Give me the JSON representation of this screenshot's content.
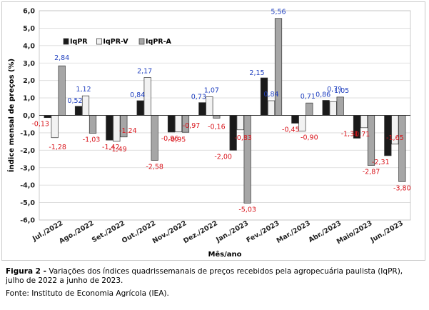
{
  "chart_data": {
    "type": "bar",
    "ylabel": "Índice mensal de preços (%)",
    "xlabel": "Mês/ano",
    "ylim": [
      -6,
      6
    ],
    "yticks": [
      "6,0",
      "5,0",
      "4,0",
      "3,0",
      "2,0",
      "1,0",
      "0,0",
      "-1,0",
      "-2,0",
      "-3,0",
      "-4,0",
      "-5,0",
      "-6,0"
    ],
    "grid": true,
    "legend_position": "top-left",
    "categories": [
      "Jul./2022",
      "Ago./2022",
      "Set./2022",
      "Out./2022",
      "Nov./2022",
      "Dez./2022",
      "Jan./2023",
      "Fev./2023",
      "Mar./2023",
      "Abr./2023",
      "Maio/2023",
      "Jun./2023"
    ],
    "series": [
      {
        "name": "IqPR",
        "color": "#1a1a1a",
        "values": [
          -0.13,
          0.52,
          -1.42,
          0.84,
          -0.96,
          0.73,
          -2.0,
          2.15,
          -0.45,
          0.86,
          -1.31,
          -2.31
        ],
        "labels": [
          "-0,13",
          "0,52",
          "-1,42",
          "0,84",
          "-0,96",
          "0,73",
          "-2,00",
          "2,15",
          "-0,45",
          "0,86",
          "-1,31",
          "-2,31"
        ]
      },
      {
        "name": "IqPR-V",
        "color": "#f2f2f2",
        "values": [
          -1.28,
          1.12,
          -1.49,
          2.17,
          -0.95,
          1.07,
          -0.83,
          0.84,
          -0.9,
          0.79,
          -0.71,
          -1.65
        ],
        "labels": [
          "-1,28",
          "1,12",
          "-1,49",
          "2,17",
          "-0,95",
          "1,07",
          "-0,83",
          "0,84",
          "-0,90",
          "0,79",
          "-0,71",
          "-1,65"
        ]
      },
      {
        "name": "IqPR-A",
        "color": "#a6a6a6",
        "values": [
          2.84,
          -1.03,
          -1.24,
          -2.58,
          -0.97,
          -0.16,
          -5.03,
          5.56,
          0.71,
          1.05,
          -2.87,
          -3.8
        ],
        "labels": [
          "2,84",
          "-1,03",
          "-1,24",
          "-2,58",
          "-0,97",
          "-0,16",
          "-5,03",
          "5,56",
          "0,71",
          "1,05",
          "-2,87",
          "-3,80"
        ]
      }
    ],
    "label_colors": {
      "positive": "#1f3fbf",
      "negative": "#d9141b"
    }
  },
  "caption": {
    "figure_label": "Figura 2 -",
    "text": " Variações dos índices quadrissemanais de preços recebidos pela agropecuária paulista (IqPR), julho de 2022 a junho de 2023.",
    "source": "Fonte: Instituto de Economia Agrícola (IEA)."
  }
}
